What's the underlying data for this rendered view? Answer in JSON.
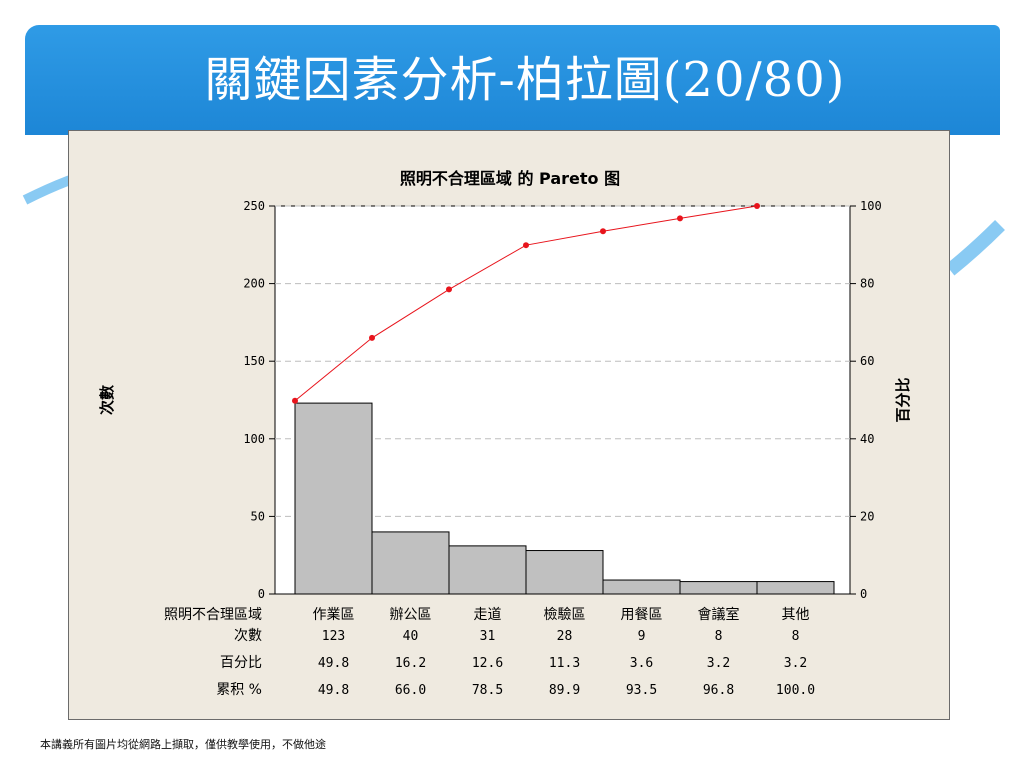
{
  "slide": {
    "title": "關鍵因素分析-柏拉圖(20/80)",
    "footer": "本講義所有圖片均從網路上擷取，僅供教學使用，不做他途",
    "banner_color": "#1d86d6"
  },
  "chart_data": {
    "type": "bar",
    "title": "照明不合理區域 的 Pareto 图",
    "xlabel": "照明不合理區域",
    "ylabel": "次數",
    "y2label": "百分比",
    "ylim": [
      0,
      250
    ],
    "y2lim": [
      0,
      100
    ],
    "yticks": [
      0,
      50,
      100,
      150,
      200,
      250
    ],
    "y2ticks": [
      0,
      20,
      40,
      60,
      80,
      100
    ],
    "grid": true,
    "categories": [
      "作業區",
      "辦公區",
      "走道",
      "檢驗區",
      "用餐區",
      "會議室",
      "其他"
    ],
    "values": [
      123,
      40,
      31,
      28,
      9,
      8,
      8
    ],
    "cumulative_percent_line": [
      49.8,
      66.0,
      78.5,
      89.9,
      93.5,
      96.8,
      100.0
    ],
    "table": {
      "row_labels": [
        "照明不合理區域",
        "次數",
        "百分比",
        "累积 %"
      ],
      "counts": [
        "123",
        "40",
        "31",
        "28",
        "9",
        "8",
        "8"
      ],
      "percent": [
        "49.8",
        "16.2",
        "12.6",
        "11.3",
        "3.6",
        "3.2",
        "3.2"
      ],
      "cumulative": [
        "49.8",
        "66.0",
        "78.5",
        "89.9",
        "93.5",
        "96.8",
        "100.0"
      ]
    },
    "bar_color": "#c0c0c0",
    "line_color": "#e8141c"
  }
}
